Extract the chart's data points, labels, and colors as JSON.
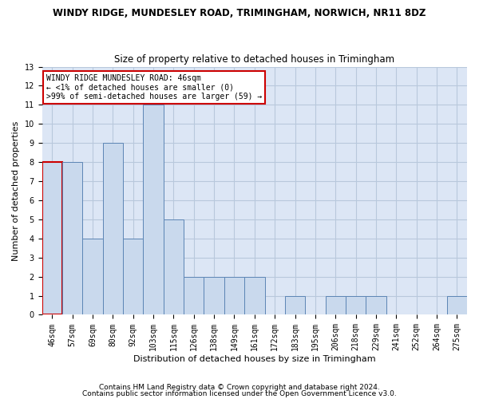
{
  "title1": "WINDY RIDGE, MUNDESLEY ROAD, TRIMINGHAM, NORWICH, NR11 8DZ",
  "title2": "Size of property relative to detached houses in Trimingham",
  "xlabel": "Distribution of detached houses by size in Trimingham",
  "ylabel": "Number of detached properties",
  "categories": [
    "46sqm",
    "57sqm",
    "69sqm",
    "80sqm",
    "92sqm",
    "103sqm",
    "115sqm",
    "126sqm",
    "138sqm",
    "149sqm",
    "161sqm",
    "172sqm",
    "183sqm",
    "195sqm",
    "206sqm",
    "218sqm",
    "229sqm",
    "241sqm",
    "252sqm",
    "264sqm",
    "275sqm"
  ],
  "values": [
    8,
    8,
    4,
    9,
    4,
    11,
    5,
    2,
    2,
    2,
    2,
    0,
    1,
    0,
    1,
    1,
    1,
    0,
    0,
    0,
    1
  ],
  "bar_color": "#c9d9ed",
  "bar_edge_color": "#5c85b5",
  "highlight_index": 0,
  "highlight_color": "#cc0000",
  "annotation_box_color": "#ffffff",
  "annotation_box_edge": "#cc0000",
  "annotation_line1": "WINDY RIDGE MUNDESLEY ROAD: 46sqm",
  "annotation_line2": "← <1% of detached houses are smaller (0)",
  "annotation_line3": ">99% of semi-detached houses are larger (59) →",
  "ylim": [
    0,
    13
  ],
  "yticks": [
    0,
    1,
    2,
    3,
    4,
    5,
    6,
    7,
    8,
    9,
    10,
    11,
    12,
    13
  ],
  "footer1": "Contains HM Land Registry data © Crown copyright and database right 2024.",
  "footer2": "Contains public sector information licensed under the Open Government Licence v3.0.",
  "bg_color": "#ffffff",
  "plot_bg_color": "#dce6f5",
  "grid_color": "#b8c8dc",
  "title1_fontsize": 8.5,
  "title2_fontsize": 8.5,
  "axis_label_fontsize": 8,
  "tick_fontsize": 7,
  "annotation_fontsize": 7,
  "footer_fontsize": 6.5
}
